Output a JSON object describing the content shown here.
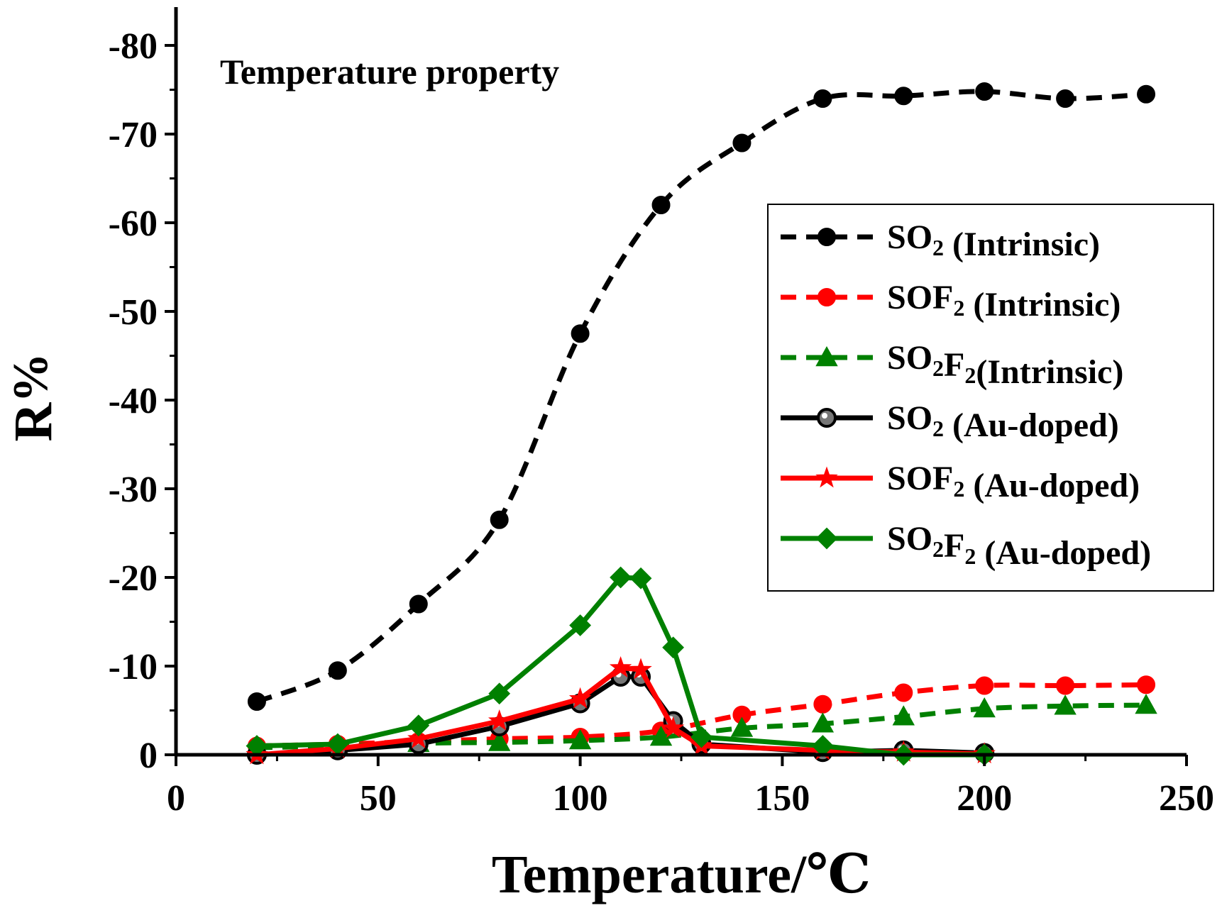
{
  "chart_data": {
    "type": "line",
    "title": "",
    "annotation": "Temperature property",
    "xlabel": "Temperature/℃",
    "ylabel": "R%",
    "xlim": [
      0,
      250
    ],
    "ylim": [
      0,
      -80
    ],
    "xticks": [
      0,
      50,
      100,
      150,
      200,
      250
    ],
    "yticks": [
      0,
      -10,
      -20,
      -30,
      -40,
      -50,
      -60,
      -70,
      -80
    ],
    "xtick_labels": [
      "0",
      "50",
      "100",
      "150",
      "200",
      "250"
    ],
    "ytick_labels": [
      "0",
      "-10",
      "-20",
      "-30",
      "-40",
      "-50",
      "-60",
      "-70",
      "-80"
    ],
    "legend_position": "right",
    "series": [
      {
        "name": "SO2 (Intrinsic)",
        "label_parts": [
          [
            "SO",
            ""
          ],
          [
            "2",
            "sub"
          ],
          [
            "   (Intrinsic)",
            ""
          ]
        ],
        "color": "#000000",
        "dash": true,
        "marker": "circle",
        "x": [
          20,
          40,
          60,
          80,
          100,
          120,
          140,
          160,
          180,
          200,
          220,
          240
        ],
        "y": [
          -6,
          -9.5,
          -17,
          -26.5,
          -47.5,
          -62,
          -69,
          -74,
          -74.3,
          -74.8,
          -74,
          -74.5
        ]
      },
      {
        "name": "SOF2 (Intrinsic)",
        "label_parts": [
          [
            "SOF",
            ""
          ],
          [
            "2",
            "sub"
          ],
          [
            " (Intrinsic)",
            ""
          ]
        ],
        "color": "#ff0000",
        "dash": true,
        "marker": "circle",
        "x": [
          20,
          40,
          60,
          80,
          100,
          120,
          140,
          160,
          180,
          200,
          220,
          240
        ],
        "y": [
          -1,
          -1.2,
          -1.5,
          -1.8,
          -2,
          -2.7,
          -4.5,
          -5.7,
          -7,
          -7.8,
          -7.8,
          -7.9
        ]
      },
      {
        "name": "SO2F2(Intrinsic)",
        "label_parts": [
          [
            "SO",
            ""
          ],
          [
            "2",
            "sub"
          ],
          [
            "F",
            ""
          ],
          [
            "2",
            "sub"
          ],
          [
            "(Intrinsic)",
            ""
          ]
        ],
        "color": "#008000",
        "dash": true,
        "marker": "triangle",
        "x": [
          20,
          40,
          60,
          80,
          100,
          120,
          140,
          160,
          180,
          200,
          220,
          240
        ],
        "y": [
          -0.8,
          -1,
          -1.3,
          -1.4,
          -1.6,
          -2,
          -3,
          -3.5,
          -4.3,
          -5.2,
          -5.5,
          -5.6
        ]
      },
      {
        "name": "SO2 (Au-doped)",
        "label_parts": [
          [
            "SO",
            ""
          ],
          [
            "2",
            "sub"
          ],
          [
            "   (Au-doped)",
            ""
          ]
        ],
        "color": "#000000",
        "dash": false,
        "marker": "hollow-circle",
        "x": [
          20,
          40,
          60,
          80,
          100,
          110,
          115,
          123,
          130,
          160,
          180,
          200
        ],
        "y": [
          0,
          -0.5,
          -1.2,
          -3.2,
          -5.8,
          -8.8,
          -8.8,
          -3.8,
          -1.2,
          -0.3,
          -0.5,
          -0.2
        ]
      },
      {
        "name": "SOF2 (Au-doped)",
        "label_parts": [
          [
            "SOF",
            ""
          ],
          [
            "2",
            "sub"
          ],
          [
            " (Au-doped)",
            ""
          ]
        ],
        "color": "#ff0000",
        "dash": false,
        "marker": "star",
        "x": [
          20,
          40,
          60,
          80,
          100,
          110,
          115,
          123,
          130,
          160,
          180,
          200
        ],
        "y": [
          0,
          -0.7,
          -1.8,
          -3.8,
          -6.3,
          -9.8,
          -9.6,
          -3,
          -1,
          -0.5,
          -0.3,
          -0.1
        ]
      },
      {
        "name": "SO2F2 (Au-doped)",
        "label_parts": [
          [
            "SO",
            ""
          ],
          [
            "2",
            "sub"
          ],
          [
            "F",
            ""
          ],
          [
            "2",
            "sub"
          ],
          [
            " (Au-doped)",
            ""
          ]
        ],
        "color": "#008000",
        "dash": false,
        "marker": "diamond",
        "x": [
          20,
          40,
          60,
          80,
          100,
          110,
          115,
          123,
          130,
          160,
          180,
          200
        ],
        "y": [
          -1,
          -1.2,
          -3.3,
          -6.9,
          -14.6,
          -20,
          -19.9,
          -12.1,
          -2,
          -1,
          0,
          0
        ]
      }
    ]
  }
}
